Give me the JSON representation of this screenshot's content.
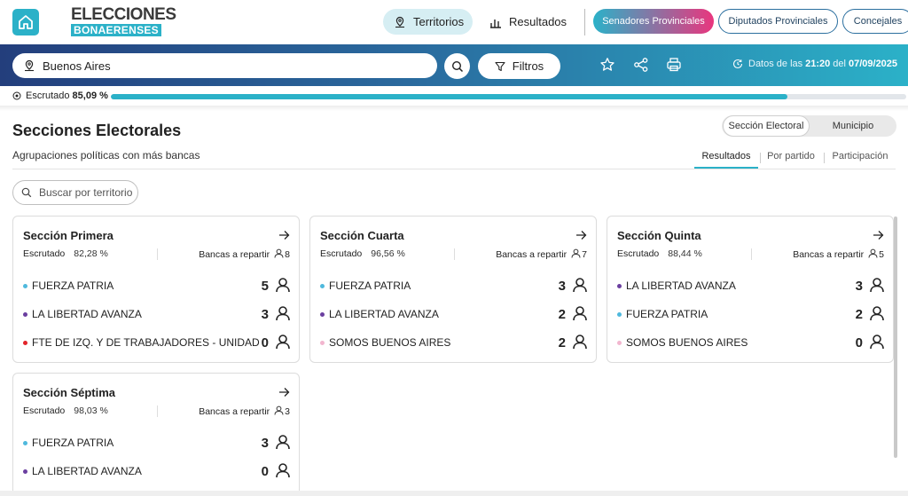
{
  "header": {
    "logo_top": "ELECCIONES",
    "logo_bottom": "BONAERENSES",
    "nav": [
      {
        "label": "Territorios"
      },
      {
        "label": "Resultados"
      }
    ],
    "chambers": [
      {
        "label": "Senadores Provinciales"
      },
      {
        "label": "Diputados Provinciales"
      },
      {
        "label": "Concejales"
      }
    ]
  },
  "searchbar": {
    "value": "Buenos Aires",
    "filtros_label": "Filtros",
    "data_prefix": "Datos de las",
    "data_time": "21:20",
    "data_mid": "del",
    "data_date": "07/09/2025"
  },
  "escrutado": {
    "label": "Escrutado",
    "value": "85,09 %",
    "fraction": 0.8509
  },
  "section": {
    "title": "Secciones Electorales",
    "subtitle": "Agrupaciones políticas con más bancas",
    "toggle": [
      "Sección Electoral",
      "Municipio"
    ],
    "tabs": [
      "Resultados",
      "Por partido",
      "Participación"
    ],
    "search_placeholder": "Buscar por territorio"
  },
  "colors": {
    "fuerza_patria": "#4fb9dd",
    "libertad_avanza": "#6b3fa0",
    "fit_u": "#e2242a",
    "somos": "#f2b6cf"
  },
  "cards": [
    {
      "title": "Sección Primera",
      "esc_label": "Escrutado",
      "esc_value": "82,28 %",
      "bancas_label": "Bancas a repartir",
      "bancas": "8",
      "parties": [
        {
          "name": "FUERZA PATRIA",
          "seats": "5",
          "color": "#4fb9dd"
        },
        {
          "name": "LA LIBERTAD AVANZA",
          "seats": "3",
          "color": "#6b3fa0"
        },
        {
          "name": "FTE DE IZQ. Y DE TRABAJADORES - UNIDAD",
          "seats": "0",
          "color": "#e2242a"
        }
      ]
    },
    {
      "title": "Sección Cuarta",
      "esc_label": "Escrutado",
      "esc_value": "96,56 %",
      "bancas_label": "Bancas a repartir",
      "bancas": "7",
      "parties": [
        {
          "name": "FUERZA PATRIA",
          "seats": "3",
          "color": "#4fb9dd"
        },
        {
          "name": "LA LIBERTAD AVANZA",
          "seats": "2",
          "color": "#6b3fa0"
        },
        {
          "name": "SOMOS BUENOS AIRES",
          "seats": "2",
          "color": "#f2b6cf"
        }
      ]
    },
    {
      "title": "Sección Quinta",
      "esc_label": "Escrutado",
      "esc_value": "88,44 %",
      "bancas_label": "Bancas a repartir",
      "bancas": "5",
      "parties": [
        {
          "name": "LA LIBERTAD AVANZA",
          "seats": "3",
          "color": "#6b3fa0"
        },
        {
          "name": "FUERZA PATRIA",
          "seats": "2",
          "color": "#4fb9dd"
        },
        {
          "name": "SOMOS BUENOS AIRES",
          "seats": "0",
          "color": "#f2b6cf"
        }
      ]
    },
    {
      "title": "Sección Séptima",
      "esc_label": "Escrutado",
      "esc_value": "98,03 %",
      "bancas_label": "Bancas a repartir",
      "bancas": "3",
      "parties": [
        {
          "name": "FUERZA PATRIA",
          "seats": "3",
          "color": "#4fb9dd"
        },
        {
          "name": "LA LIBERTAD AVANZA",
          "seats": "0",
          "color": "#6b3fa0"
        }
      ]
    }
  ]
}
